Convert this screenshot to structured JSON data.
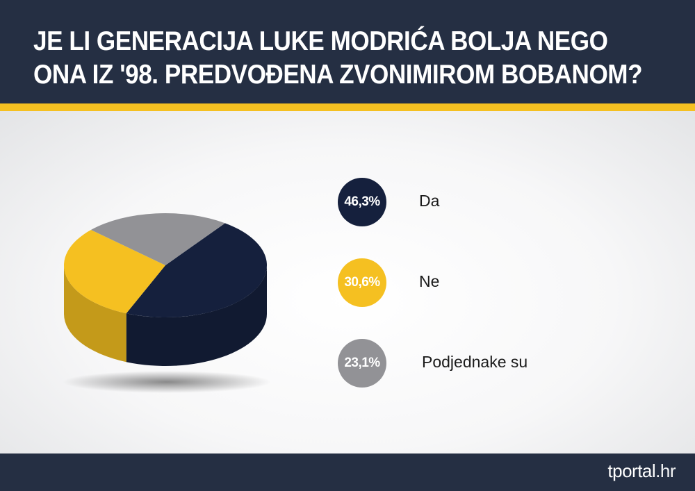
{
  "header": {
    "title_line1": "JE LI GENERACIJA LUKE MODRIĆA BOLJA NEGO",
    "title_line2": "ONA IZ '98. PREDVOĐENA ZVONIMIROM BOBANOM?"
  },
  "footer": {
    "logo_main": "tportal",
    "logo_tld": ".hr"
  },
  "colors": {
    "header_bg": "#252f43",
    "accent": "#f5c021",
    "da": "#15203d",
    "ne": "#f5c021",
    "podjednake": "#929296"
  },
  "chart_data": {
    "type": "pie",
    "title": "JE LI GENERACIJA LUKE MODRIĆA BOLJA NEGO ONA IZ '98. PREDVOĐENA ZVONIMIROM BOBANOM?",
    "legend_position": "right",
    "slices": [
      {
        "label": "Da",
        "value": 46.3,
        "display": "46,3%",
        "color": "#15203d"
      },
      {
        "label": "Ne",
        "value": 30.6,
        "display": "30,6%",
        "color": "#f5c021"
      },
      {
        "label": "Podjednake su",
        "value": 23.1,
        "display": "23,1%",
        "color": "#929296"
      }
    ]
  }
}
